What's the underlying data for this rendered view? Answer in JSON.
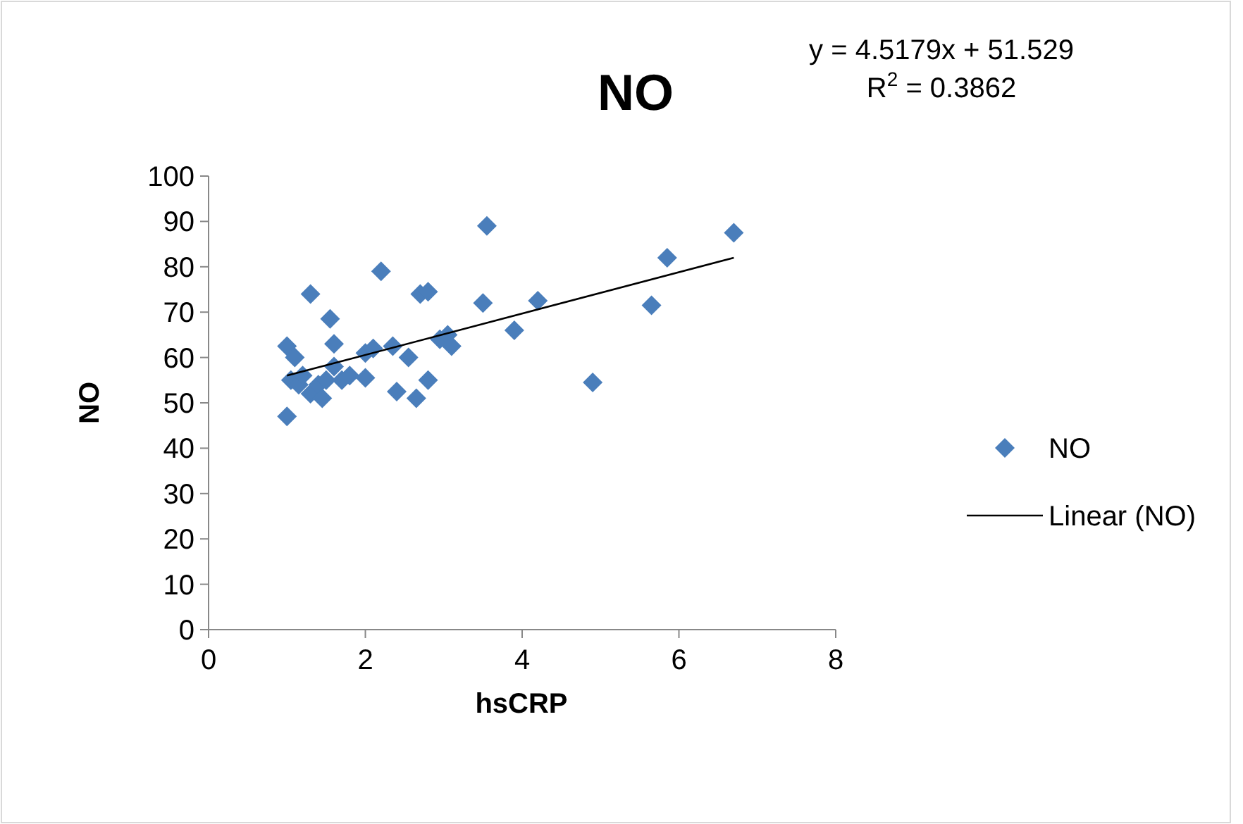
{
  "chart_data": {
    "type": "scatter",
    "title": "NO",
    "xlabel": "hsCRP",
    "ylabel": "NO",
    "annotations": [
      "y = 4.5179x + 51.529",
      "R$^{2}$ = 0.3862"
    ],
    "xlim": [
      0,
      8
    ],
    "xticks": [
      0,
      2,
      4,
      6,
      8
    ],
    "ylim": [
      0,
      100
    ],
    "yticks": [
      0,
      10,
      20,
      30,
      40,
      50,
      60,
      70,
      80,
      90,
      100
    ],
    "grid": false,
    "legend": "right",
    "series": [
      {
        "name": "NO",
        "marker": "diamond",
        "color": "#4a7ebb",
        "x": [
          1.0,
          1.0,
          1.1,
          1.05,
          1.15,
          1.2,
          1.3,
          1.3,
          1.4,
          1.45,
          1.5,
          1.55,
          1.6,
          1.6,
          1.7,
          1.8,
          2.0,
          2.0,
          2.1,
          2.2,
          2.35,
          2.4,
          2.55,
          2.65,
          2.7,
          2.8,
          2.8,
          2.95,
          3.05,
          3.1,
          3.5,
          3.55,
          3.9,
          4.2,
          4.9,
          5.65,
          5.85,
          6.7
        ],
        "values": [
          47,
          62.5,
          60,
          55,
          54,
          56,
          74,
          52,
          54,
          51,
          55,
          68.5,
          63,
          58,
          55,
          56,
          55.5,
          61,
          62,
          79,
          62.5,
          52.5,
          60,
          51,
          74,
          74.5,
          55,
          64,
          65,
          62.5,
          72,
          89,
          66,
          72.5,
          54.5,
          71.5,
          82,
          87.5
        ]
      },
      {
        "name": "Linear (NO)",
        "type": "line",
        "color": "#000000",
        "x": [
          1.0,
          6.7
        ],
        "values": [
          56,
          82
        ],
        "marker": "none"
      }
    ]
  }
}
